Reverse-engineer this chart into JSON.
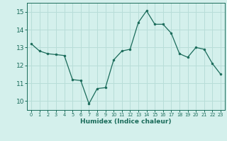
{
  "x": [
    0,
    1,
    2,
    3,
    4,
    5,
    6,
    7,
    8,
    9,
    10,
    11,
    12,
    13,
    14,
    15,
    16,
    17,
    18,
    19,
    20,
    21,
    22,
    23
  ],
  "y": [
    13.2,
    12.8,
    12.65,
    12.6,
    12.55,
    11.2,
    11.15,
    9.85,
    10.7,
    10.75,
    12.3,
    12.8,
    12.9,
    14.4,
    15.05,
    14.3,
    14.3,
    13.8,
    12.65,
    12.45,
    13.0,
    12.9,
    12.1,
    11.5
  ],
  "line_color": "#1a6b5a",
  "bg_color": "#d4f0ec",
  "grid_color": "#b8ddd8",
  "xlabel": "Humidex (Indice chaleur)",
  "xlabel_color": "#1a6b5a",
  "tick_color": "#1a6b5a",
  "ylim": [
    9.5,
    15.5
  ],
  "xlim": [
    -0.5,
    23.5
  ],
  "yticks": [
    10,
    11,
    12,
    13,
    14,
    15
  ],
  "xtick_labels": [
    "0",
    "1",
    "2",
    "3",
    "4",
    "5",
    "6",
    "7",
    "8",
    "9",
    "10",
    "11",
    "12",
    "13",
    "14",
    "15",
    "16",
    "17",
    "18",
    "19",
    "20",
    "21",
    "22",
    "23"
  ]
}
